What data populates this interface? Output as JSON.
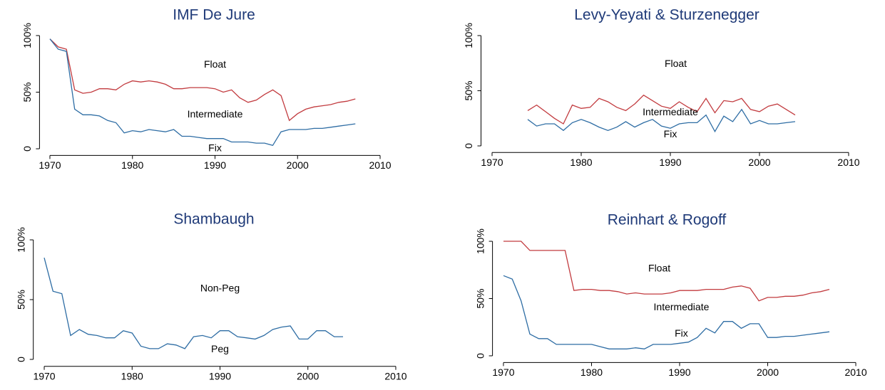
{
  "chart_data": [
    {
      "type": "line",
      "title": "IMF De Jure",
      "x": [
        1970,
        1971,
        1972,
        1973,
        1974,
        1975,
        1976,
        1977,
        1978,
        1979,
        1980,
        1981,
        1982,
        1983,
        1984,
        1985,
        1986,
        1987,
        1988,
        1989,
        1990,
        1991,
        1992,
        1993,
        1994,
        1995,
        1996,
        1997,
        1998,
        1999,
        2000,
        2001,
        2002,
        2003,
        2004,
        2005,
        2006,
        2007
      ],
      "series": [
        {
          "color": "#c23b3f",
          "values": [
            97,
            90,
            88,
            52,
            49,
            50,
            53,
            53,
            52,
            57,
            60,
            59,
            60,
            59,
            57,
            53,
            53,
            54,
            54,
            54,
            53,
            50,
            52,
            45,
            41,
            43,
            48,
            52,
            47,
            25,
            31,
            35,
            37,
            38,
            39,
            41,
            42,
            44
          ]
        },
        {
          "color": "#2e6da4",
          "values": [
            97,
            88,
            86,
            35,
            30,
            30,
            29,
            25,
            23,
            14,
            16,
            15,
            17,
            16,
            15,
            17,
            11,
            11,
            10,
            9,
            9,
            9,
            6,
            6,
            6,
            5,
            5,
            3,
            15,
            17,
            17,
            17,
            18,
            18,
            19,
            20,
            21,
            22
          ]
        }
      ],
      "annotations": [
        {
          "text": "Float",
          "x": 1990,
          "y": 74
        },
        {
          "text": "Intermediate",
          "x": 1990,
          "y": 30
        },
        {
          "text": "Fix",
          "x": 1990,
          "y": 0
        }
      ],
      "xlim": [
        1969,
        2011
      ],
      "xticks": [
        1970,
        1980,
        1990,
        2000,
        2010
      ],
      "ylim": [
        -4,
        104
      ],
      "yticks": [
        0,
        {
          "value": 50,
          "label": "50%"
        },
        {
          "value": 100,
          "label": "100%"
        }
      ]
    },
    {
      "type": "line",
      "title": "Levy-Yeyati & Sturzenegger",
      "x": [
        1974,
        1975,
        1976,
        1977,
        1978,
        1979,
        1980,
        1981,
        1982,
        1983,
        1984,
        1985,
        1986,
        1987,
        1988,
        1989,
        1990,
        1991,
        1992,
        1993,
        1994,
        1995,
        1996,
        1997,
        1998,
        1999,
        2000,
        2001,
        2002,
        2003,
        2004
      ],
      "series": [
        {
          "color": "#c23b3f",
          "values": [
            32,
            37,
            31,
            25,
            20,
            37,
            34,
            35,
            43,
            40,
            35,
            32,
            38,
            46,
            41,
            36,
            34,
            40,
            35,
            31,
            43,
            30,
            41,
            40,
            43,
            33,
            31,
            36,
            38,
            33,
            28
          ]
        },
        {
          "color": "#2e6da4",
          "values": [
            24,
            18,
            20,
            20,
            14,
            21,
            24,
            21,
            17,
            14,
            17,
            22,
            17,
            21,
            24,
            18,
            16,
            20,
            21,
            21,
            28,
            13,
            27,
            22,
            33,
            20,
            23,
            20,
            20,
            21,
            22
          ]
        }
      ],
      "annotations": [
        {
          "text": "Float",
          "x": 1990.6,
          "y": 74
        },
        {
          "text": "Intermediate",
          "x": 1990,
          "y": 30
        },
        {
          "text": "Fix",
          "x": 1990,
          "y": 10
        }
      ],
      "xlim": [
        1969,
        2011
      ],
      "xticks": [
        1970,
        1980,
        1990,
        2000,
        2010
      ],
      "ylim": [
        -4,
        104
      ],
      "yticks": [
        0,
        {
          "value": 50,
          "label": "50%"
        },
        {
          "value": 100,
          "label": "100%"
        }
      ]
    },
    {
      "type": "line",
      "title": "Shambaugh",
      "x": [
        1970,
        1971,
        1972,
        1973,
        1974,
        1975,
        1976,
        1977,
        1978,
        1979,
        1980,
        1981,
        1982,
        1983,
        1984,
        1985,
        1986,
        1987,
        1988,
        1989,
        1990,
        1991,
        1992,
        1993,
        1994,
        1995,
        1996,
        1997,
        1998,
        1999,
        2000,
        2001,
        2002,
        2003,
        2004
      ],
      "series": [
        {
          "color": "#2e6da4",
          "values": [
            85,
            57,
            55,
            20,
            25,
            21,
            20,
            18,
            18,
            24,
            22,
            11,
            9,
            9,
            13,
            12,
            9,
            19,
            20,
            18,
            24,
            24,
            19,
            18,
            17,
            20,
            25,
            27,
            28,
            17,
            17,
            24,
            24,
            19,
            19
          ]
        }
      ],
      "annotations": [
        {
          "text": "Non-Peg",
          "x": 1990,
          "y": 59
        },
        {
          "text": "Peg",
          "x": 1990,
          "y": 8
        }
      ],
      "xlim": [
        1969,
        2011
      ],
      "xticks": [
        1970,
        1980,
        1990,
        2000,
        2010
      ],
      "ylim": [
        -4,
        104
      ],
      "yticks": [
        0,
        {
          "value": 50,
          "label": "50%"
        },
        {
          "value": 100,
          "label": "100%"
        }
      ]
    },
    {
      "type": "line",
      "title": "Reinhart & Rogoff",
      "x": [
        1970,
        1971,
        1972,
        1973,
        1974,
        1975,
        1976,
        1977,
        1978,
        1979,
        1980,
        1981,
        1982,
        1983,
        1984,
        1985,
        1986,
        1987,
        1988,
        1989,
        1990,
        1991,
        1992,
        1993,
        1994,
        1995,
        1996,
        1997,
        1998,
        1999,
        2000,
        2001,
        2002,
        2003,
        2004,
        2005,
        2006,
        2007
      ],
      "series": [
        {
          "color": "#c23b3f",
          "values": [
            100,
            100,
            100,
            92,
            92,
            92,
            92,
            92,
            57,
            58,
            58,
            57,
            57,
            56,
            54,
            55,
            54,
            54,
            54,
            55,
            57,
            57,
            57,
            58,
            58,
            58,
            60,
            61,
            59,
            48,
            51,
            51,
            52,
            52,
            53,
            55,
            56,
            58
          ]
        },
        {
          "color": "#2e6da4",
          "values": [
            70,
            67,
            48,
            19,
            15,
            15,
            10,
            10,
            10,
            10,
            10,
            8,
            6,
            6,
            6,
            7,
            6,
            10,
            10,
            10,
            11,
            12,
            16,
            24,
            20,
            30,
            30,
            24,
            28,
            28,
            16,
            16,
            17,
            17,
            18,
            19,
            20,
            21
          ]
        }
      ],
      "annotations": [
        {
          "text": "Float",
          "x": 1987.7,
          "y": 76
        },
        {
          "text": "Intermediate",
          "x": 1990.2,
          "y": 42
        },
        {
          "text": "Fix",
          "x": 1990.2,
          "y": 19
        }
      ],
      "xlim": [
        1969,
        2011
      ],
      "xticks": [
        1970,
        1980,
        1990,
        2000,
        2010
      ],
      "ylim": [
        -4,
        104
      ],
      "yticks": [
        0,
        {
          "value": 50,
          "label": "50%"
        },
        {
          "value": 100,
          "label": "100%"
        }
      ]
    }
  ]
}
